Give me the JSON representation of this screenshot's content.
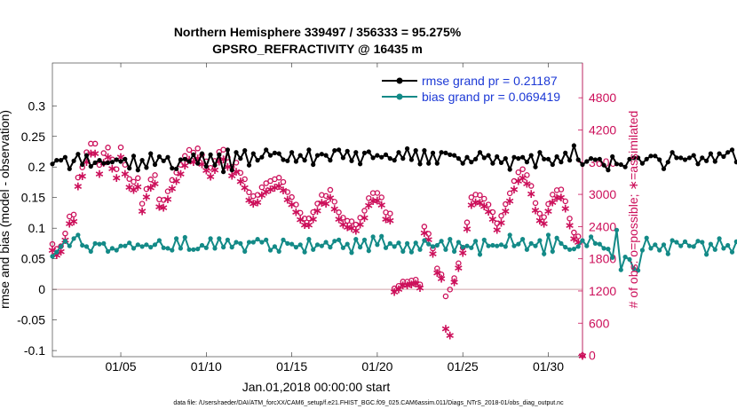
{
  "title_line1": "Northern Hemisphere 339497 / 356333 = 95.275%",
  "title_line2": "GPSRO_REFRACTIVITY @ 16435 m",
  "footer": "data file: /Users/raeder/DAI/ATM_forcXX/CAM6_setup/f.e21.FHIST_BGC.f09_025.CAM6assim.011/Diags_NTrS_2018-01/obs_diag_output.nc",
  "colors": {
    "rmse": "#000000",
    "bias": "#138a87",
    "obs": "#cc0f5a",
    "legend_text": "#1c39d6"
  },
  "chart_data": {
    "type": "line",
    "xlabel": "Jan.01,2018 00:00:00 start",
    "ylabel_left": "rmse and bias (model - observation)",
    "ylabel_right": "# of obs: o=possible; ∗=assimilated",
    "x_range_days": [
      0.0,
      31.0
    ],
    "ylim_left": [
      -0.11,
      0.37
    ],
    "ylim_right": [
      -24,
      5448
    ],
    "x_ticks": [
      {
        "day": 4,
        "label": "01/05"
      },
      {
        "day": 9,
        "label": "01/10"
      },
      {
        "day": 14,
        "label": "01/15"
      },
      {
        "day": 19,
        "label": "01/20"
      },
      {
        "day": 24,
        "label": "01/25"
      },
      {
        "day": 29,
        "label": "01/30"
      }
    ],
    "y_ticks_left": [
      {
        "value": -0.1,
        "label": "-0.1"
      },
      {
        "value": -0.05,
        "label": "-0.05"
      },
      {
        "value": 0,
        "label": "0"
      },
      {
        "value": 0.05,
        "label": "0.05"
      },
      {
        "value": 0.1,
        "label": "0.1"
      },
      {
        "value": 0.15,
        "label": "0.15"
      },
      {
        "value": 0.2,
        "label": "0.2"
      },
      {
        "value": 0.25,
        "label": "0.25"
      },
      {
        "value": 0.3,
        "label": "0.3"
      }
    ],
    "y_ticks_right": [
      {
        "value": 0,
        "label": "0"
      },
      {
        "value": 600,
        "label": "600"
      },
      {
        "value": 1200,
        "label": "1200"
      },
      {
        "value": 1800,
        "label": "1800"
      },
      {
        "value": 2400,
        "label": "2400"
      },
      {
        "value": 3000,
        "label": "3000"
      },
      {
        "value": 3600,
        "label": "3600"
      },
      {
        "value": 4200,
        "label": "4200"
      },
      {
        "value": 4800,
        "label": "4800"
      }
    ],
    "zero_line": 0,
    "legend": [
      {
        "name": "rmse grand pr = 0.21187",
        "series": "rmse"
      },
      {
        "name": "bias grand pr = 0.069419",
        "series": "bias"
      }
    ],
    "day_start": 0.0,
    "day_step": 0.25,
    "rmse": [
      0.205,
      0.211,
      0.211,
      0.216,
      0.197,
      0.21,
      0.221,
      0.204,
      0.219,
      0.201,
      0.207,
      0.211,
      0.206,
      0.207,
      0.208,
      0.212,
      0.209,
      0.213,
      0.198,
      0.218,
      0.195,
      0.211,
      0.199,
      0.222,
      0.204,
      0.217,
      0.21,
      0.216,
      0.198,
      0.197,
      0.212,
      0.213,
      0.209,
      0.22,
      0.206,
      0.222,
      0.201,
      0.22,
      0.203,
      0.22,
      0.192,
      0.228,
      0.195,
      0.224,
      0.214,
      0.227,
      0.203,
      0.222,
      0.211,
      0.216,
      0.228,
      0.219,
      0.223,
      0.222,
      0.212,
      0.21,
      0.224,
      0.209,
      0.219,
      0.211,
      0.228,
      0.204,
      0.219,
      0.221,
      0.219,
      0.211,
      0.227,
      0.228,
      0.215,
      0.226,
      0.21,
      0.224,
      0.205,
      0.223,
      0.225,
      0.215,
      0.219,
      0.216,
      0.22,
      0.214,
      0.211,
      0.224,
      0.214,
      0.23,
      0.212,
      0.227,
      0.205,
      0.227,
      0.206,
      0.223,
      0.206,
      0.224,
      0.223,
      0.22,
      0.219,
      0.214,
      0.206,
      0.216,
      0.208,
      0.213,
      0.224,
      0.215,
      0.219,
      0.206,
      0.217,
      0.207,
      0.214,
      0.196,
      0.216,
      0.214,
      0.216,
      0.208,
      0.219,
      0.2,
      0.224,
      0.213,
      0.213,
      0.204,
      0.217,
      0.208,
      0.223,
      0.211,
      0.235,
      0.212,
      0.204,
      0.209,
      0.214,
      0.212,
      0.213,
      0.203,
      0.195,
      0.217,
      0.205,
      0.204,
      0.2,
      0.213,
      0.215,
      0.215,
      0.206,
      0.213,
      0.218,
      0.218,
      0.212,
      0.197,
      0.208,
      0.224,
      0.215,
      0.215,
      0.212,
      0.215,
      0.219,
      0.205,
      0.215,
      0.21,
      0.222,
      0.209,
      0.222,
      0.217,
      0.224,
      0.228,
      0.208,
      0.213,
      0.212,
      0.224,
      0.208,
      0.229,
      0.229,
      0.213,
      0.221,
      0.218,
      0.215,
      0.212,
      0.223,
      0.215,
      0.227,
      0.215,
      0.221,
      0.214,
      0.233,
      0.203,
      0.23,
      0.213,
      0.23,
      0.222,
      0.23,
      0.215,
      0.211,
      0.221,
      0.222,
      0.214,
      0.233,
      0.216,
      0.218,
      0.214,
      0.221,
      0.224,
      0.215,
      0.219,
      0.223,
      0.219,
      0.227,
      0.211,
      0.222,
      0.216,
      0.217,
      0.213
    ],
    "bias": [
      0.054,
      0.061,
      0.07,
      0.079,
      0.071,
      0.083,
      0.089,
      0.072,
      0.07,
      0.062,
      0.075,
      0.074,
      0.075,
      0.062,
      0.067,
      0.064,
      0.071,
      0.071,
      0.076,
      0.067,
      0.073,
      0.07,
      0.073,
      0.069,
      0.073,
      0.08,
      0.068,
      0.067,
      0.064,
      0.083,
      0.067,
      0.085,
      0.065,
      0.065,
      0.066,
      0.072,
      0.068,
      0.083,
      0.067,
      0.083,
      0.069,
      0.081,
      0.069,
      0.077,
      0.075,
      0.062,
      0.077,
      0.077,
      0.082,
      0.077,
      0.081,
      0.064,
      0.07,
      0.062,
      0.081,
      0.075,
      0.074,
      0.069,
      0.073,
      0.061,
      0.082,
      0.065,
      0.073,
      0.071,
      0.077,
      0.069,
      0.079,
      0.081,
      0.068,
      0.074,
      0.06,
      0.082,
      0.069,
      0.081,
      0.063,
      0.086,
      0.073,
      0.087,
      0.068,
      0.075,
      0.07,
      0.076,
      0.062,
      0.075,
      0.061,
      0.076,
      0.065,
      0.08,
      0.074,
      0.07,
      0.072,
      0.079,
      0.065,
      0.082,
      0.062,
      0.077,
      0.069,
      0.071,
      0.068,
      0.079,
      0.057,
      0.081,
      0.071,
      0.072,
      0.071,
      0.073,
      0.07,
      0.089,
      0.071,
      0.074,
      0.082,
      0.065,
      0.075,
      0.071,
      0.08,
      0.058,
      0.089,
      0.062,
      0.084,
      0.075,
      0.069,
      0.065,
      0.066,
      0.07,
      0.08,
      0.071,
      0.086,
      0.075,
      0.074,
      0.067,
      0.066,
      0.052,
      0.097,
      0.032,
      0.053,
      0.049,
      0.034,
      0.031,
      0.064,
      0.084,
      0.067,
      0.073,
      0.064,
      0.073,
      0.058,
      0.08,
      0.077,
      0.071,
      0.078,
      0.071,
      0.07,
      0.079,
      0.077,
      0.057,
      0.074,
      0.065,
      0.083,
      0.067,
      0.072,
      0.061,
      0.078,
      0.067,
      0.079,
      0.055,
      0.076,
      0.059,
      0.08,
      0.075,
      0.068,
      0.069,
      0.066,
      0.078,
      0.071,
      0.084,
      0.077,
      0.07,
      0.089,
      0.058,
      0.084,
      0.067,
      0.068,
      0.069,
      0.075,
      0.087,
      0.069,
      0.084,
      0.062,
      0.076,
      0.066,
      0.065,
      0.059,
      0.09,
      0.075,
      0.072,
      0.057,
      0.084,
      0.088,
      0.064,
      0.091,
      0.093,
      0.087,
      0.085,
      0.077,
      0.064,
      0.08,
      0.095
    ],
    "obs_possible": [
      [
        0.0,
        2074
      ],
      [
        0.25,
        1984
      ],
      [
        0.5,
        2034
      ],
      [
        0.75,
        2271
      ],
      [
        1.0,
        2588
      ],
      [
        1.25,
        2624
      ],
      [
        1.5,
        3314
      ],
      [
        1.75,
        3504
      ],
      [
        2.0,
        3785
      ],
      [
        2.25,
        3945
      ],
      [
        2.5,
        3945
      ],
      [
        2.75,
        3549
      ],
      [
        3.0,
        3769
      ],
      [
        3.25,
        3873
      ],
      [
        3.5,
        3651
      ],
      [
        3.75,
        3469
      ],
      [
        4.0,
        3876
      ],
      [
        4.25,
        3551
      ],
      [
        4.5,
        3287
      ],
      [
        4.75,
        3235
      ],
      [
        5.0,
        3302
      ],
      [
        5.25,
        2826
      ],
      [
        5.5,
        3099
      ],
      [
        5.75,
        3278
      ],
      [
        6.0,
        3359
      ],
      [
        6.25,
        2906
      ],
      [
        6.5,
        2895
      ],
      [
        6.75,
        3057
      ],
      [
        7.0,
        3267
      ],
      [
        7.25,
        3407
      ],
      [
        7.5,
        3551
      ],
      [
        7.75,
        3716
      ],
      [
        8.0,
        3828
      ],
      [
        8.25,
        3779
      ],
      [
        8.5,
        3856
      ],
      [
        8.75,
        3739
      ],
      [
        9.0,
        3615
      ],
      [
        9.25,
        3494
      ],
      [
        9.5,
        3624
      ],
      [
        9.75,
        3791
      ],
      [
        10.0,
        3833
      ],
      [
        10.25,
        3686
      ],
      [
        10.5,
        3511
      ],
      [
        10.75,
        3591
      ],
      [
        11.0,
        3401
      ],
      [
        11.25,
        3283
      ],
      [
        11.5,
        3038
      ],
      [
        11.75,
        2966
      ],
      [
        12.0,
        2992
      ],
      [
        12.25,
        3132
      ],
      [
        12.5,
        3207
      ],
      [
        12.75,
        3249
      ],
      [
        13.0,
        3283
      ],
      [
        13.25,
        3311
      ],
      [
        13.5,
        3231
      ],
      [
        13.75,
        3043
      ],
      [
        14.0,
        2949
      ],
      [
        14.25,
        2809
      ],
      [
        14.5,
        2656
      ],
      [
        14.75,
        2550
      ],
      [
        15.0,
        2552
      ],
      [
        15.25,
        2669
      ],
      [
        15.5,
        2827
      ],
      [
        15.75,
        2989
      ],
      [
        16.0,
        2971
      ],
      [
        16.25,
        3083
      ],
      [
        16.5,
        2863
      ],
      [
        16.75,
        2666
      ],
      [
        17.0,
        2566
      ],
      [
        17.25,
        2507
      ],
      [
        17.5,
        2497
      ],
      [
        17.75,
        2437
      ],
      [
        18.0,
        2566
      ],
      [
        18.25,
        2695
      ],
      [
        18.5,
        2930
      ],
      [
        18.75,
        3025
      ],
      [
        19.0,
        3026
      ],
      [
        19.25,
        2944
      ],
      [
        19.5,
        2665
      ],
      [
        19.75,
        2642
      ],
      [
        20.0,
        1248
      ],
      [
        20.25,
        1295
      ],
      [
        20.5,
        1374
      ],
      [
        20.75,
        1373
      ],
      [
        21.0,
        1394
      ],
      [
        21.25,
        1411
      ],
      [
        21.5,
        1322
      ],
      [
        21.75,
        2399
      ],
      [
        22.0,
        2265
      ],
      [
        22.25,
        1990
      ],
      [
        22.5,
        1619
      ],
      [
        22.75,
        1508
      ],
      [
        23.0,
        1101
      ],
      [
        23.25,
        1227
      ],
      [
        23.5,
        1440
      ],
      [
        23.75,
        1716
      ],
      [
        24.0,
        2007
      ],
      [
        24.25,
        2478
      ],
      [
        24.5,
        2945
      ],
      [
        24.75,
        2996
      ],
      [
        25.0,
        2985
      ],
      [
        25.25,
        2919
      ],
      [
        25.5,
        2810
      ],
      [
        25.75,
        2669
      ],
      [
        26.0,
        2459
      ],
      [
        26.25,
        2600
      ],
      [
        26.5,
        2819
      ],
      [
        26.75,
        3020
      ],
      [
        27.0,
        3249
      ],
      [
        27.25,
        3411
      ],
      [
        27.5,
        3469
      ],
      [
        27.75,
        3359
      ],
      [
        28.0,
        3158
      ],
      [
        28.25,
        2838
      ],
      [
        28.5,
        2641
      ],
      [
        28.75,
        2576
      ],
      [
        29.0,
        2820
      ],
      [
        29.25,
        2995
      ],
      [
        29.5,
        3078
      ],
      [
        29.75,
        3091
      ],
      [
        30.0,
        2871
      ],
      [
        30.25,
        2549
      ],
      [
        30.5,
        2290
      ],
      [
        30.75,
        2217
      ],
      [
        31.0,
        0
      ]
    ],
    "obs_assimilated": [
      [
        0.0,
        1965
      ],
      [
        0.25,
        1874
      ],
      [
        0.5,
        1943
      ],
      [
        0.75,
        2155
      ],
      [
        1.0,
        2467
      ],
      [
        1.25,
        2505
      ],
      [
        1.5,
        3158
      ],
      [
        1.75,
        3345
      ],
      [
        2.0,
        3616
      ],
      [
        2.25,
        3766
      ],
      [
        2.5,
        3769
      ],
      [
        2.75,
        3392
      ],
      [
        3.0,
        3598
      ],
      [
        3.25,
        3701
      ],
      [
        3.5,
        3486
      ],
      [
        3.75,
        3312
      ],
      [
        4.0,
        3704
      ],
      [
        4.25,
        3391
      ],
      [
        4.5,
        3139
      ],
      [
        4.75,
        3090
      ],
      [
        5.0,
        3153
      ],
      [
        5.25,
        2699
      ],
      [
        5.5,
        2961
      ],
      [
        5.75,
        3130
      ],
      [
        6.0,
        3209
      ],
      [
        6.25,
        2775
      ],
      [
        6.5,
        2765
      ],
      [
        6.75,
        2920
      ],
      [
        7.0,
        3121
      ],
      [
        7.25,
        3255
      ],
      [
        7.5,
        3392
      ],
      [
        7.75,
        3550
      ],
      [
        8.0,
        3657
      ],
      [
        8.25,
        3610
      ],
      [
        8.5,
        3683
      ],
      [
        8.75,
        3572
      ],
      [
        9.0,
        3453
      ],
      [
        9.25,
        3338
      ],
      [
        9.5,
        3462
      ],
      [
        9.75,
        3621
      ],
      [
        10.0,
        3662
      ],
      [
        10.25,
        3521
      ],
      [
        10.5,
        3354
      ],
      [
        10.75,
        3431
      ],
      [
        11.0,
        3249
      ],
      [
        11.25,
        3136
      ],
      [
        11.5,
        2902
      ],
      [
        11.75,
        2834
      ],
      [
        12.0,
        2858
      ],
      [
        12.25,
        2992
      ],
      [
        12.5,
        3063
      ],
      [
        12.75,
        3103
      ],
      [
        13.0,
        3136
      ],
      [
        13.25,
        3163
      ],
      [
        13.5,
        3086
      ],
      [
        13.75,
        2907
      ],
      [
        14.0,
        2817
      ],
      [
        14.25,
        2683
      ],
      [
        14.5,
        2537
      ],
      [
        14.75,
        2436
      ],
      [
        15.0,
        2438
      ],
      [
        15.25,
        2549
      ],
      [
        15.5,
        2701
      ],
      [
        15.75,
        2855
      ],
      [
        16.0,
        2838
      ],
      [
        16.25,
        2945
      ],
      [
        16.5,
        2735
      ],
      [
        16.75,
        2546
      ],
      [
        17.0,
        2451
      ],
      [
        17.25,
        2395
      ],
      [
        17.5,
        2385
      ],
      [
        17.75,
        2328
      ],
      [
        18.0,
        2451
      ],
      [
        18.25,
        2574
      ],
      [
        18.5,
        2799
      ],
      [
        18.75,
        2889
      ],
      [
        19.0,
        2890
      ],
      [
        19.25,
        2812
      ],
      [
        19.5,
        2546
      ],
      [
        19.75,
        2524
      ],
      [
        20.0,
        1192
      ],
      [
        20.25,
        1237
      ],
      [
        20.5,
        1312
      ],
      [
        20.75,
        1311
      ],
      [
        21.0,
        1332
      ],
      [
        21.25,
        1348
      ],
      [
        21.5,
        1262
      ],
      [
        21.75,
        2291
      ],
      [
        22.0,
        2164
      ],
      [
        22.25,
        1901
      ],
      [
        22.5,
        1547
      ],
      [
        22.75,
        1440
      ],
      [
        23.0,
        507
      ],
      [
        23.25,
        377
      ],
      [
        23.5,
        1376
      ],
      [
        23.75,
        1639
      ],
      [
        24.0,
        1917
      ],
      [
        24.25,
        2367
      ],
      [
        24.5,
        2813
      ],
      [
        24.75,
        2862
      ],
      [
        25.0,
        2851
      ],
      [
        25.25,
        2788
      ],
      [
        25.5,
        2684
      ],
      [
        25.75,
        2549
      ],
      [
        26.0,
        2349
      ],
      [
        26.25,
        2483
      ],
      [
        26.5,
        2693
      ],
      [
        26.75,
        2884
      ],
      [
        27.0,
        3104
      ],
      [
        27.25,
        3258
      ],
      [
        27.5,
        3313
      ],
      [
        27.75,
        3208
      ],
      [
        28.0,
        3016
      ],
      [
        28.25,
        2711
      ],
      [
        28.5,
        2522
      ],
      [
        28.75,
        2460
      ],
      [
        29.0,
        2693
      ],
      [
        29.25,
        2861
      ],
      [
        29.5,
        2940
      ],
      [
        29.75,
        2952
      ],
      [
        30.0,
        2743
      ],
      [
        30.25,
        2435
      ],
      [
        30.5,
        2187
      ],
      [
        30.75,
        2118
      ],
      [
        31.0,
        0
      ]
    ]
  }
}
